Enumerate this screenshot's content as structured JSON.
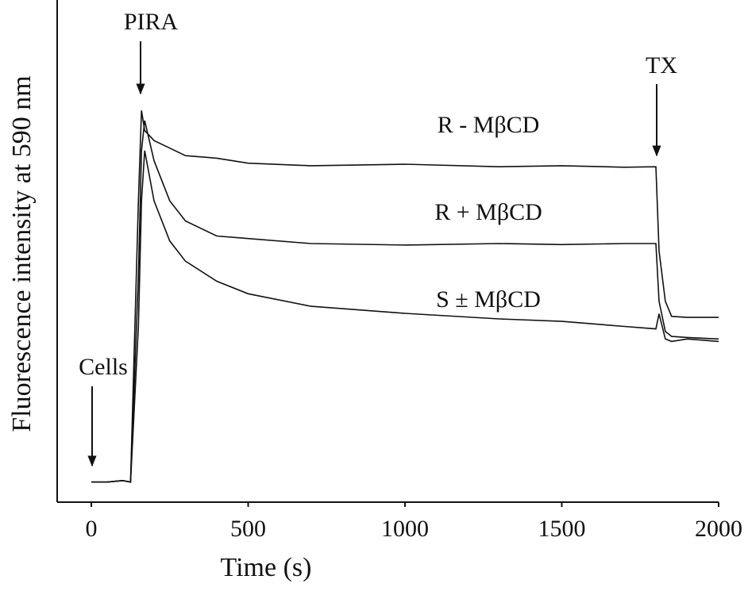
{
  "chart_data": {
    "type": "line",
    "x_label": "Time (s)",
    "y_label": "Fluorescence intensity at 590 nm",
    "xlim": [
      -109,
      2000
    ],
    "ylim": [
      0,
      100
    ],
    "xticks": [
      0,
      500,
      1000,
      1500,
      2000
    ],
    "x": [
      0,
      50,
      100,
      125,
      150,
      160,
      170,
      200,
      250,
      300,
      400,
      500,
      700,
      1000,
      1300,
      1500,
      1700,
      1800,
      1810,
      1830,
      1850,
      1900,
      2000
    ],
    "series": [
      {
        "name": "R - MβCD",
        "color": "#111111",
        "values": [
          4,
          4,
          4.3,
          4,
          60,
          78,
          74,
          72,
          70.5,
          69,
          68.5,
          67.5,
          67,
          67.3,
          66.8,
          67,
          66.7,
          66.8,
          50,
          40,
          37,
          36.8,
          36.8
        ]
      },
      {
        "name": "R + MβCD",
        "color": "#111111",
        "values": [
          4,
          4,
          4.3,
          4,
          45,
          70,
          76,
          68,
          60,
          56,
          53,
          52.5,
          51.5,
          51.2,
          51.5,
          51.3,
          51.5,
          51.5,
          40,
          34,
          33,
          32.8,
          32.5
        ]
      },
      {
        "name": "S ± MβCD",
        "color": "#111111",
        "values": [
          4,
          4,
          4.3,
          4,
          35,
          60,
          70,
          60,
          52,
          48,
          44,
          41.5,
          39,
          37.6,
          36.5,
          36,
          35,
          34.5,
          37.5,
          32.5,
          32,
          32.5,
          32
        ]
      }
    ],
    "annotations": [
      "PIRA",
      "TX",
      "Cells"
    ]
  }
}
